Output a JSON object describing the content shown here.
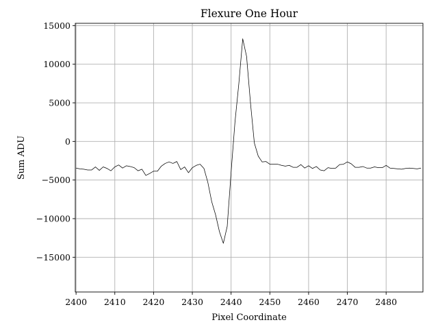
{
  "chart_data": {
    "type": "line",
    "title": "Flexure One Hour",
    "xlabel": "Pixel Coordinate",
    "ylabel": "Sum ADU",
    "xlim": [
      2399.8,
      2489.5
    ],
    "ylim": [
      -19500,
      15300
    ],
    "x_ticks": [
      2400,
      2410,
      2420,
      2430,
      2440,
      2450,
      2460,
      2470,
      2480
    ],
    "y_ticks": [
      15000,
      10000,
      5000,
      0,
      -5000,
      -10000,
      -15000
    ],
    "x_tick_labels": [
      "2400",
      "2410",
      "2420",
      "2430",
      "2440",
      "2450",
      "2460",
      "2470",
      "2480"
    ],
    "y_tick_labels": [
      "15000",
      "10000",
      "5000",
      "0",
      "−5000",
      "−10000",
      "−15000"
    ],
    "grid": true,
    "legend": "none",
    "series": [
      {
        "color": "#000000",
        "x": [
          2400,
          2401,
          2402,
          2403,
          2404,
          2405,
          2406,
          2407,
          2408,
          2409,
          2410,
          2411,
          2412,
          2413,
          2414,
          2415,
          2416,
          2417,
          2418,
          2419,
          2420,
          2421,
          2422,
          2423,
          2424,
          2425,
          2426,
          2427,
          2428,
          2429,
          2430,
          2431,
          2432,
          2433,
          2434,
          2435,
          2436,
          2437,
          2438,
          2439,
          2440,
          2441,
          2442,
          2443,
          2444,
          2445,
          2446,
          2447,
          2448,
          2449,
          2450,
          2451,
          2452,
          2453,
          2454,
          2455,
          2456,
          2457,
          2458,
          2459,
          2460,
          2461,
          2462,
          2463,
          2464,
          2465,
          2466,
          2467,
          2468,
          2469,
          2470,
          2471,
          2472,
          2473,
          2474,
          2475,
          2476,
          2477,
          2478,
          2479,
          2480,
          2481,
          2482,
          2483,
          2484,
          2485,
          2486,
          2487,
          2488,
          2489
        ],
        "y": [
          -3450,
          -3550,
          -3600,
          -3700,
          -3700,
          -3300,
          -3750,
          -3300,
          -3500,
          -3800,
          -3300,
          -3050,
          -3450,
          -3150,
          -3250,
          -3400,
          -3800,
          -3600,
          -4400,
          -4150,
          -3850,
          -3850,
          -3200,
          -2850,
          -2650,
          -2850,
          -2600,
          -3650,
          -3300,
          -4050,
          -3400,
          -3100,
          -2950,
          -3500,
          -5300,
          -7800,
          -9500,
          -11700,
          -13200,
          -11000,
          -4000,
          2500,
          7500,
          13300,
          11000,
          5000,
          -200,
          -1900,
          -2650,
          -2600,
          -2950,
          -2950,
          -2950,
          -3100,
          -3200,
          -3100,
          -3350,
          -3350,
          -3000,
          -3450,
          -3150,
          -3500,
          -3250,
          -3700,
          -3800,
          -3400,
          -3500,
          -3450,
          -3000,
          -2950,
          -2650,
          -2900,
          -3350,
          -3350,
          -3250,
          -3450,
          -3450,
          -3300,
          -3400,
          -3400,
          -3100,
          -3450,
          -3500,
          -3550,
          -3600,
          -3500,
          -3450,
          -3500,
          -3550,
          -3450
        ]
      }
    ]
  }
}
